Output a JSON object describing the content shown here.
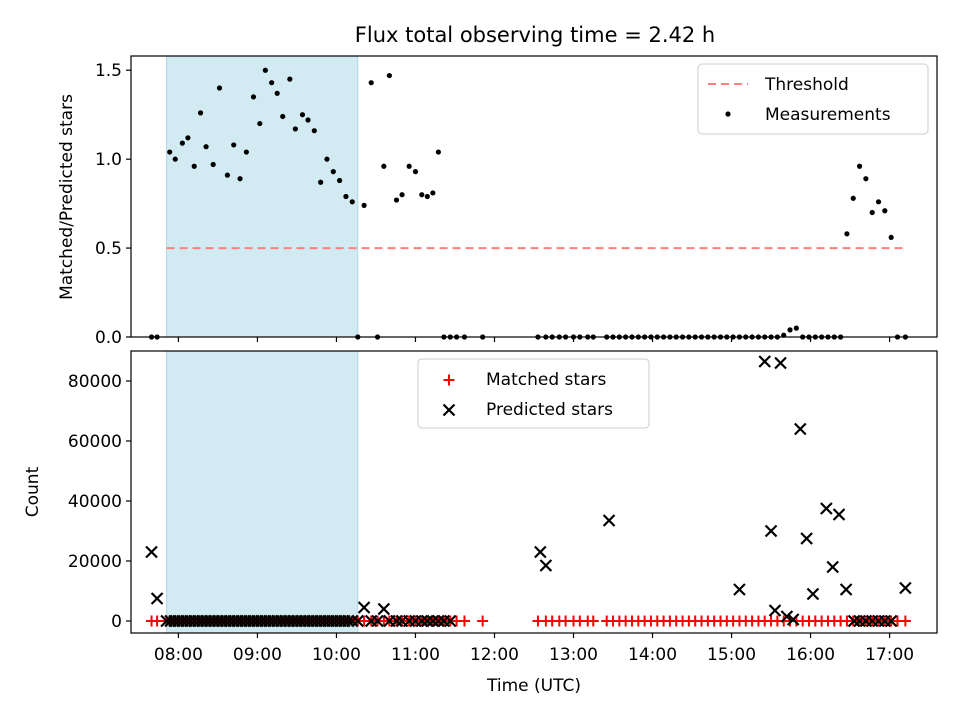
{
  "figure_title": "Flux total observing time = 2.42 h",
  "colors": {
    "threshold": "#ff7f7f",
    "measurement": "#000000",
    "matched": "#ff0000",
    "predicted": "#000000",
    "span": "#add8e6"
  },
  "chart_data": [
    {
      "type": "scatter",
      "panel": "top",
      "title": "Flux total observing time = 2.42 h",
      "ylabel": "Matched/Predicted stars",
      "xlabel": "",
      "xlim": [
        7.4,
        17.6
      ],
      "ylim": [
        0,
        1.58
      ],
      "yticks": [
        0.0,
        0.5,
        1.0,
        1.5
      ],
      "ytick_labels": [
        "0.0",
        "0.5",
        "1.0",
        "1.5"
      ],
      "xticks": [
        8,
        9,
        10,
        11,
        12,
        13,
        14,
        15,
        16,
        17
      ],
      "shaded_span": [
        7.85,
        10.27
      ],
      "legend": {
        "position": "upper right",
        "entries": [
          {
            "label": "Threshold",
            "kind": "dashed-line"
          },
          {
            "label": "Measurements",
            "kind": "dot"
          }
        ]
      },
      "threshold": {
        "name": "Threshold",
        "value": 0.5,
        "x": [
          7.85,
          17.2
        ]
      },
      "series": [
        {
          "name": "Measurements",
          "x": [
            7.66,
            7.73,
            7.89,
            7.96,
            8.05,
            8.12,
            8.2,
            8.28,
            8.35,
            8.44,
            8.52,
            8.62,
            8.7,
            8.78,
            8.86,
            8.95,
            9.03,
            9.1,
            9.18,
            9.25,
            9.32,
            9.41,
            9.48,
            9.57,
            9.64,
            9.72,
            9.8,
            9.88,
            9.96,
            10.04,
            10.12,
            10.2,
            10.27,
            10.35,
            10.44,
            10.52,
            10.6,
            10.67,
            10.76,
            10.83,
            10.92,
            11.0,
            11.08,
            11.15,
            11.22,
            11.29,
            11.36,
            11.44,
            11.52,
            11.62,
            11.85,
            12.55,
            12.65,
            12.73,
            12.82,
            12.9,
            13.0,
            13.08,
            13.18,
            13.25,
            13.42,
            13.5,
            13.58,
            13.66,
            13.74,
            13.82,
            13.9,
            13.98,
            14.06,
            14.14,
            14.22,
            14.3,
            14.38,
            14.46,
            14.54,
            14.62,
            14.7,
            14.78,
            14.86,
            14.94,
            15.02,
            15.1,
            15.18,
            15.26,
            15.34,
            15.42,
            15.5,
            15.58,
            15.66,
            15.74,
            15.82,
            15.9,
            15.98,
            16.06,
            16.14,
            16.22,
            16.3,
            16.38,
            16.46,
            16.54,
            16.62,
            16.7,
            16.78,
            16.86,
            16.94,
            17.02,
            17.1,
            17.2
          ],
          "y": [
            0.0,
            0.0,
            1.04,
            1.0,
            1.09,
            1.12,
            0.96,
            1.26,
            1.07,
            0.97,
            1.4,
            0.91,
            1.08,
            0.89,
            1.04,
            1.35,
            1.2,
            1.5,
            1.43,
            1.37,
            1.24,
            1.45,
            1.17,
            1.25,
            1.22,
            1.16,
            0.87,
            1.0,
            0.93,
            0.88,
            0.79,
            0.76,
            0.0,
            0.74,
            1.43,
            0.0,
            0.96,
            1.47,
            0.77,
            0.8,
            0.96,
            0.93,
            0.8,
            0.79,
            0.81,
            1.04,
            0.0,
            0.0,
            0.0,
            0.0,
            0.0,
            0.0,
            0.0,
            0.0,
            0.0,
            0.0,
            0.0,
            0.0,
            0.0,
            0.0,
            0.0,
            0.0,
            0.0,
            0.0,
            0.0,
            0.0,
            0.0,
            0.0,
            0.0,
            0.0,
            0.0,
            0.0,
            0.0,
            0.0,
            0.0,
            0.0,
            0.0,
            0.0,
            0.0,
            0.0,
            0.0,
            0.0,
            0.0,
            0.0,
            0.0,
            0.0,
            0.0,
            0.0,
            0.01,
            0.04,
            0.05,
            0.0,
            0.0,
            0.0,
            0.0,
            0.0,
            0.0,
            0.0,
            0.58,
            0.78,
            0.96,
            0.89,
            0.7,
            0.76,
            0.71,
            0.56,
            0.0,
            0.0
          ]
        }
      ]
    },
    {
      "type": "scatter",
      "panel": "bottom",
      "title": "",
      "ylabel": "Count",
      "xlabel": "Time (UTC)",
      "xlim": [
        7.4,
        17.6
      ],
      "ylim": [
        -4000,
        90000
      ],
      "yticks": [
        0,
        20000,
        40000,
        60000,
        80000
      ],
      "ytick_labels": [
        "0",
        "20000",
        "40000",
        "60000",
        "80000"
      ],
      "xticks": [
        8,
        9,
        10,
        11,
        12,
        13,
        14,
        15,
        16,
        17
      ],
      "xtick_labels": [
        "08:00",
        "09:00",
        "10:00",
        "11:00",
        "12:00",
        "13:00",
        "14:00",
        "15:00",
        "16:00",
        "17:00"
      ],
      "shaded_span": [
        7.85,
        10.27
      ],
      "legend": {
        "position": "upper center",
        "entries": [
          {
            "label": "Matched stars",
            "kind": "plus"
          },
          {
            "label": "Predicted stars",
            "kind": "cross"
          }
        ]
      },
      "series": [
        {
          "name": "Matched stars",
          "marker": "plus",
          "x": [
            7.66,
            7.73,
            7.85,
            7.9,
            7.95,
            8.0,
            8.05,
            8.1,
            8.15,
            8.2,
            8.25,
            8.3,
            8.35,
            8.4,
            8.45,
            8.5,
            8.55,
            8.6,
            8.65,
            8.7,
            8.75,
            8.8,
            8.85,
            8.9,
            8.95,
            9.0,
            9.05,
            9.1,
            9.15,
            9.2,
            9.25,
            9.3,
            9.35,
            9.4,
            9.45,
            9.5,
            9.55,
            9.6,
            9.65,
            9.7,
            9.75,
            9.8,
            9.85,
            9.9,
            9.95,
            10.0,
            10.05,
            10.1,
            10.15,
            10.2,
            10.27,
            10.35,
            10.44,
            10.52,
            10.6,
            10.67,
            10.76,
            10.83,
            10.92,
            11.0,
            11.08,
            11.15,
            11.22,
            11.29,
            11.36,
            11.44,
            11.52,
            11.62,
            11.85,
            12.55,
            12.65,
            12.73,
            12.82,
            12.9,
            13.0,
            13.08,
            13.18,
            13.25,
            13.42,
            13.5,
            13.58,
            13.66,
            13.74,
            13.82,
            13.9,
            13.98,
            14.06,
            14.14,
            14.22,
            14.3,
            14.38,
            14.46,
            14.54,
            14.62,
            14.7,
            14.78,
            14.86,
            14.94,
            15.02,
            15.1,
            15.18,
            15.26,
            15.34,
            15.42,
            15.5,
            15.58,
            15.66,
            15.74,
            15.82,
            15.9,
            15.98,
            16.06,
            16.14,
            16.22,
            16.3,
            16.38,
            16.46,
            16.54,
            16.62,
            16.7,
            16.78,
            16.86,
            16.94,
            17.02,
            17.1,
            17.2
          ],
          "y": [
            0,
            0,
            0,
            0,
            0,
            0,
            0,
            0,
            0,
            0,
            0,
            0,
            0,
            0,
            0,
            0,
            0,
            0,
            0,
            0,
            0,
            0,
            0,
            0,
            0,
            0,
            0,
            0,
            0,
            0,
            0,
            0,
            0,
            0,
            0,
            0,
            0,
            0,
            0,
            0,
            0,
            0,
            0,
            0,
            0,
            0,
            0,
            0,
            0,
            0,
            0,
            0,
            0,
            0,
            0,
            0,
            0,
            0,
            0,
            0,
            0,
            0,
            0,
            0,
            0,
            0,
            0,
            0,
            0,
            0,
            0,
            0,
            0,
            0,
            0,
            0,
            0,
            0,
            0,
            0,
            0,
            0,
            0,
            0,
            0,
            0,
            0,
            0,
            0,
            0,
            0,
            0,
            0,
            0,
            0,
            0,
            0,
            0,
            0,
            0,
            0,
            0,
            0,
            0,
            0,
            0,
            0,
            0,
            0,
            0,
            0,
            0,
            0,
            0,
            0,
            0,
            0,
            0,
            0,
            0,
            0,
            0,
            0,
            0,
            0,
            0
          ]
        },
        {
          "name": "Predicted stars",
          "marker": "cross",
          "x": [
            7.66,
            7.73,
            7.85,
            7.9,
            7.95,
            8.0,
            8.05,
            8.1,
            8.15,
            8.2,
            8.25,
            8.3,
            8.35,
            8.4,
            8.45,
            8.5,
            8.55,
            8.6,
            8.65,
            8.7,
            8.75,
            8.8,
            8.85,
            8.9,
            8.95,
            9.0,
            9.05,
            9.1,
            9.15,
            9.2,
            9.25,
            9.3,
            9.35,
            9.4,
            9.45,
            9.5,
            9.55,
            9.6,
            9.65,
            9.7,
            9.75,
            9.8,
            9.85,
            9.9,
            9.95,
            10.0,
            10.05,
            10.1,
            10.15,
            10.2,
            10.27,
            10.35,
            10.44,
            10.52,
            10.6,
            10.67,
            10.76,
            10.83,
            10.92,
            11.0,
            11.08,
            11.15,
            11.22,
            11.29,
            11.36,
            11.44,
            12.58,
            12.65,
            13.45,
            15.1,
            15.42,
            15.5,
            15.55,
            15.62,
            15.7,
            15.78,
            15.87,
            15.95,
            16.03,
            16.2,
            16.28,
            16.36,
            16.45,
            16.55,
            16.62,
            16.7,
            16.78,
            16.86,
            16.94,
            17.02,
            17.2
          ],
          "y": [
            23000,
            7500,
            0,
            0,
            0,
            0,
            0,
            0,
            0,
            0,
            0,
            0,
            0,
            0,
            0,
            0,
            0,
            0,
            0,
            0,
            0,
            0,
            0,
            0,
            0,
            0,
            0,
            0,
            0,
            0,
            0,
            0,
            0,
            0,
            0,
            0,
            0,
            0,
            0,
            0,
            0,
            0,
            0,
            0,
            0,
            0,
            0,
            0,
            0,
            0,
            0,
            4500,
            0,
            0,
            4000,
            0,
            0,
            0,
            0,
            0,
            0,
            0,
            0,
            0,
            0,
            0,
            23000,
            18500,
            33500,
            10500,
            86500,
            30000,
            3500,
            86000,
            1500,
            500,
            64000,
            27500,
            9000,
            37500,
            18000,
            35500,
            10500,
            0,
            0,
            0,
            0,
            0,
            0,
            0,
            11000
          ]
        }
      ]
    }
  ]
}
